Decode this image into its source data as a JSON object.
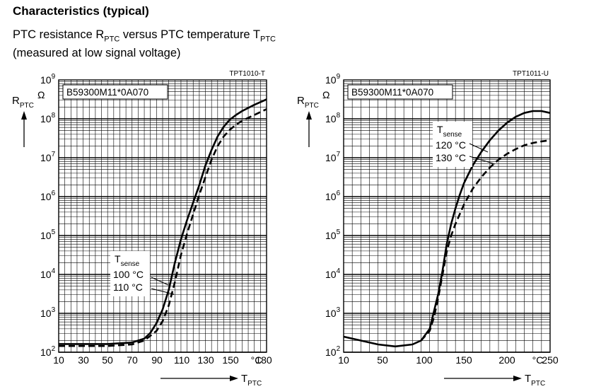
{
  "header": {
    "title": "Characteristics (typical)",
    "subtitle_prefix": "PTC resistance R",
    "subtitle_r_sub": "PTC",
    "subtitle_mid": " versus PTC temperature T",
    "subtitle_t_sub": "PTC",
    "subtitle_line2": "(measured at low signal voltage)"
  },
  "chart_data": [
    {
      "type": "line",
      "figure_code": "TPT1010-T",
      "part_label": "B59300M11*0A070",
      "ylabel": "R",
      "ylabel_sub": "PTC",
      "yunit": "Ω",
      "xlabel": "T",
      "xlabel_sub": "PTC",
      "xunit": "°C",
      "xlim": [
        10,
        180
      ],
      "ylim_log10": [
        2,
        9
      ],
      "y_scale": "log",
      "grid": true,
      "x_ticks": [
        10,
        30,
        50,
        70,
        90,
        110,
        130,
        150,
        180
      ],
      "y_ticks": [
        {
          "base": "10",
          "exp": "2"
        },
        {
          "base": "10",
          "exp": "3"
        },
        {
          "base": "10",
          "exp": "4"
        },
        {
          "base": "10",
          "exp": "5"
        },
        {
          "base": "10",
          "exp": "6"
        },
        {
          "base": "10",
          "exp": "7"
        },
        {
          "base": "10",
          "exp": "8"
        },
        {
          "base": "10",
          "exp": "9"
        }
      ],
      "legend_title": "T",
      "legend_title_sub": "sense",
      "series": [
        {
          "name": "100 °C",
          "style": "solid",
          "x": [
            10,
            50,
            70,
            80,
            85,
            90,
            95,
            100,
            105,
            110,
            115,
            120,
            125,
            130,
            135,
            140,
            145,
            150,
            155,
            160,
            170,
            180
          ],
          "log10_y": [
            2.21,
            2.21,
            2.25,
            2.35,
            2.5,
            2.75,
            3.1,
            3.6,
            4.3,
            4.9,
            5.4,
            5.85,
            6.3,
            6.8,
            7.2,
            7.55,
            7.8,
            7.98,
            8.1,
            8.2,
            8.36,
            8.5
          ]
        },
        {
          "name": "110 °C",
          "style": "dashed",
          "x": [
            10,
            50,
            70,
            80,
            90,
            95,
            100,
            105,
            110,
            115,
            120,
            125,
            130,
            135,
            140,
            145,
            150,
            155,
            160,
            170,
            180
          ],
          "log10_y": [
            2.16,
            2.16,
            2.2,
            2.3,
            2.55,
            2.8,
            3.2,
            3.8,
            4.5,
            5.05,
            5.55,
            6.05,
            6.5,
            6.95,
            7.3,
            7.55,
            7.72,
            7.85,
            7.95,
            8.1,
            8.25
          ]
        }
      ]
    },
    {
      "type": "line",
      "figure_code": "TPT1011-U",
      "part_label": "B59300M11*0A070",
      "ylabel": "R",
      "ylabel_sub": "PTC",
      "yunit": "Ω",
      "xlabel": "T",
      "xlabel_sub": "PTC",
      "xunit": "°C",
      "xlim": [
        10,
        250
      ],
      "ylim_log10": [
        2,
        9
      ],
      "y_scale": "log",
      "grid": true,
      "x_ticks": [
        10,
        50,
        100,
        150,
        200,
        250
      ],
      "y_ticks": [
        {
          "base": "10",
          "exp": "2"
        },
        {
          "base": "10",
          "exp": "3"
        },
        {
          "base": "10",
          "exp": "4"
        },
        {
          "base": "10",
          "exp": "5"
        },
        {
          "base": "10",
          "exp": "6"
        },
        {
          "base": "10",
          "exp": "7"
        },
        {
          "base": "10",
          "exp": "8"
        },
        {
          "base": "10",
          "exp": "9"
        }
      ],
      "legend_title": "T",
      "legend_title_sub": "sense",
      "series": [
        {
          "name": "120 °C",
          "style": "solid",
          "x": [
            10,
            30,
            50,
            70,
            90,
            100,
            110,
            120,
            125,
            130,
            135,
            140,
            145,
            150,
            160,
            170,
            180,
            190,
            200,
            210,
            220,
            230,
            240,
            250
          ],
          "log10_y": [
            2.4,
            2.3,
            2.2,
            2.15,
            2.2,
            2.3,
            2.6,
            3.5,
            4.1,
            4.8,
            5.3,
            5.7,
            6.05,
            6.35,
            6.8,
            7.15,
            7.45,
            7.7,
            7.9,
            8.05,
            8.15,
            8.2,
            8.2,
            8.15
          ]
        },
        {
          "name": "130 °C",
          "style": "dashed",
          "x": [
            100,
            110,
            115,
            120,
            125,
            130,
            135,
            140,
            150,
            160,
            170,
            180,
            190,
            200,
            210,
            220,
            230,
            240,
            250
          ],
          "log10_y": [
            2.3,
            2.55,
            2.9,
            3.4,
            4.0,
            4.6,
            5.0,
            5.3,
            5.8,
            6.2,
            6.5,
            6.75,
            6.95,
            7.1,
            7.22,
            7.32,
            7.38,
            7.42,
            7.45
          ]
        }
      ]
    }
  ]
}
